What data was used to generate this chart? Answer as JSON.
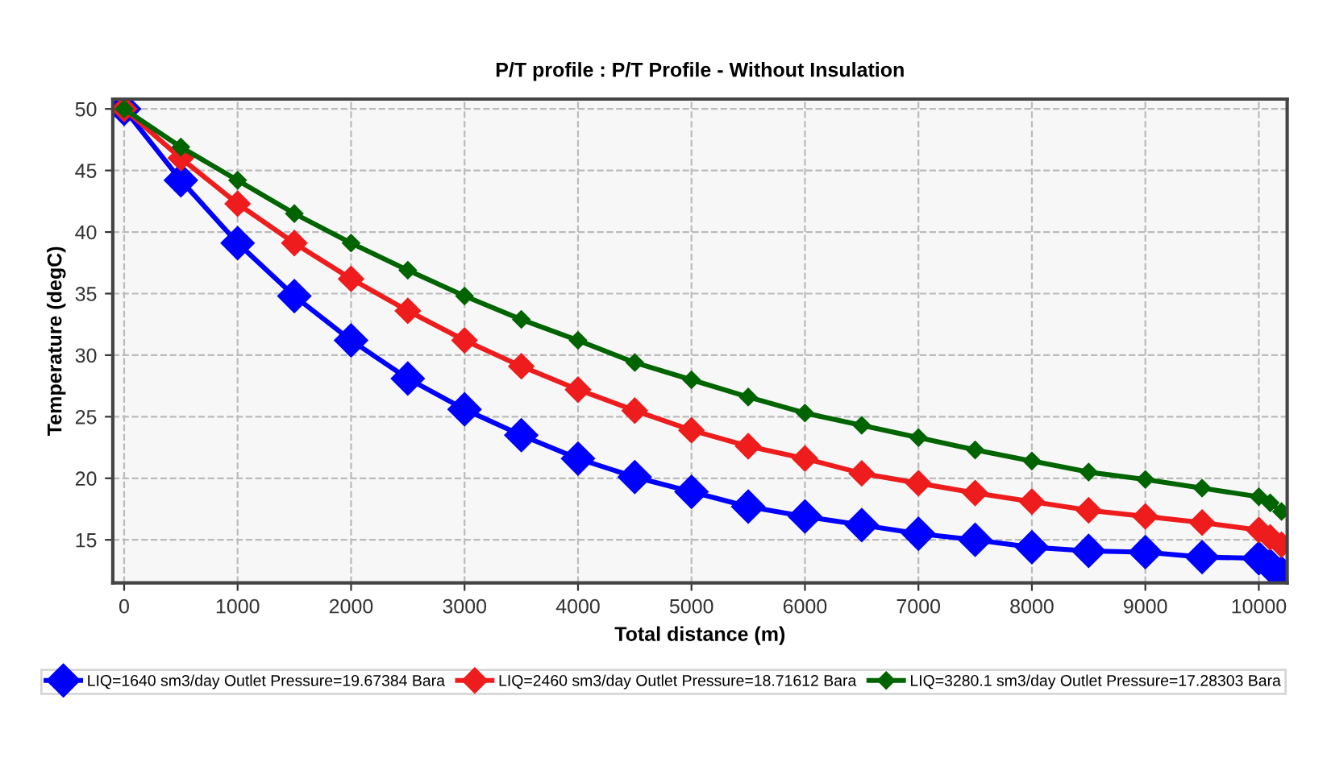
{
  "chart_data": {
    "type": "line",
    "title": "P/T profile : P/T Profile - Without Insulation",
    "xlabel": "Total distance (m)",
    "ylabel": "Temperature (degC)",
    "x": [
      0,
      500,
      1000,
      1500,
      2000,
      2500,
      3000,
      3500,
      4000,
      4500,
      5000,
      5500,
      6000,
      6500,
      7000,
      7500,
      8000,
      8500,
      9000,
      9500,
      10000,
      10100,
      10200
    ],
    "series": [
      {
        "name": "LIQ=1640 sm3/day Outlet Pressure=19.67384 Bara",
        "color": "#0000ff",
        "values": [
          50,
          44.2,
          39.1,
          34.8,
          31.2,
          28.1,
          25.6,
          23.5,
          21.6,
          20.1,
          18.9,
          17.7,
          16.9,
          16.2,
          15.5,
          15.0,
          14.4,
          14.1,
          14.0,
          13.6,
          13.5,
          12.9,
          12.3
        ]
      },
      {
        "name": "LIQ=2460 sm3/day Outlet Pressure=18.71612 Bara",
        "color": "#ee1c1c",
        "values": [
          50,
          46.0,
          42.3,
          39.1,
          36.2,
          33.6,
          31.2,
          29.1,
          27.2,
          25.5,
          23.9,
          22.6,
          21.6,
          20.4,
          19.6,
          18.8,
          18.1,
          17.4,
          16.9,
          16.4,
          15.8,
          15.2,
          14.6
        ]
      },
      {
        "name": "LIQ=3280.1 sm3/day Outlet Pressure=17.28303 Bara",
        "color": "#006400",
        "values": [
          50,
          46.9,
          44.2,
          41.5,
          39.1,
          36.9,
          34.8,
          32.9,
          31.2,
          29.4,
          28.0,
          26.6,
          25.3,
          24.3,
          23.3,
          22.3,
          21.4,
          20.5,
          19.9,
          19.2,
          18.5,
          18.0,
          17.3
        ]
      }
    ],
    "xlim": [
      -100,
      10250
    ],
    "ylim": [
      11.5,
      50.8
    ],
    "xticks": [
      0,
      1000,
      2000,
      3000,
      4000,
      5000,
      6000,
      7000,
      8000,
      9000,
      10000
    ],
    "yticks": [
      15,
      20,
      25,
      30,
      35,
      40,
      45,
      50
    ],
    "grid": true,
    "legend": "bottom",
    "marker": "diamond",
    "line_style": "solid"
  }
}
